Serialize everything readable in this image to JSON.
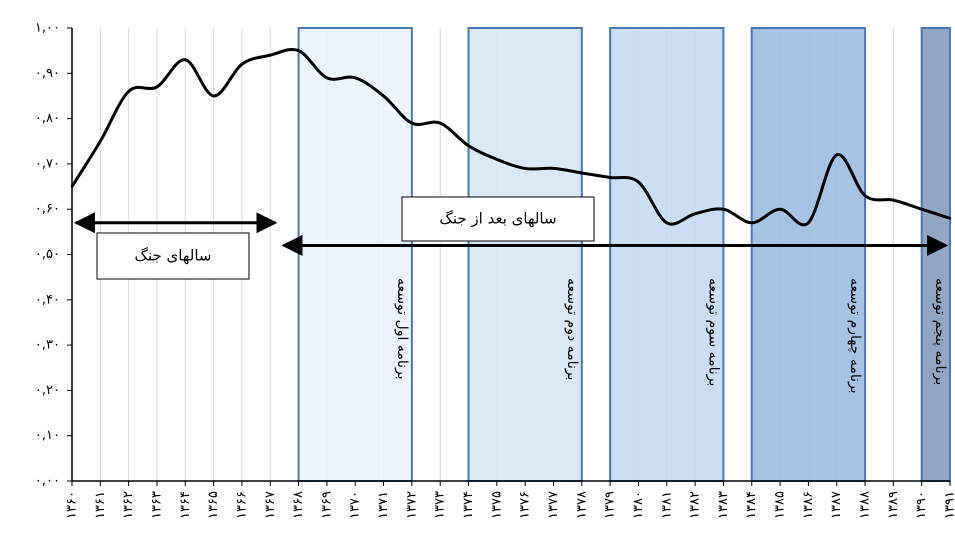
{
  "chart_data": {
    "type": "line",
    "y_ticks": [
      "۰,۰۰",
      "۰,۱۰",
      "۰,۲۰",
      "۰,۳۰",
      "۰,۴۰",
      "۰,۵۰",
      "۰,۶۰",
      "۰,۷۰",
      "۰,۸۰",
      "۰,۹۰",
      "۱,۰۰"
    ],
    "x_ticks": [
      "۱۳۶۰",
      "۱۳۶۱",
      "۱۳۶۲",
      "۱۳۶۳",
      "۱۳۶۴",
      "۱۳۶۵",
      "۱۳۶۶",
      "۱۳۶۷",
      "۱۳۶۸",
      "۱۳۶۹",
      "۱۳۷۰",
      "۱۳۷۱",
      "۱۳۷۲",
      "۱۳۷۳",
      "۱۳۷۴",
      "۱۳۷۵",
      "۱۳۷۶",
      "۱۳۷۷",
      "۱۳۷۸",
      "۱۳۷۹",
      "۱۳۸۰",
      "۱۳۸۱",
      "۱۳۸۲",
      "۱۳۸۳",
      "۱۳۸۴",
      "۱۳۸۵",
      "۱۳۸۶",
      "۱۳۸۷",
      "۱۳۸۸",
      "۱۳۸۹",
      "۱۳۹۰",
      "۱۳۹۱"
    ],
    "ylim": [
      0,
      1
    ],
    "xlim": [
      1360,
      1391
    ],
    "grid": "vertical",
    "series": [
      {
        "x": [
          1360,
          1361,
          1362,
          1363,
          1364,
          1365,
          1366,
          1367,
          1368,
          1369,
          1370,
          1371,
          1372,
          1373,
          1374,
          1375,
          1376,
          1377,
          1378,
          1379,
          1380,
          1381,
          1382,
          1383,
          1384,
          1385,
          1386,
          1387,
          1388,
          1389,
          1390,
          1391
        ],
        "values": [
          0.65,
          0.75,
          0.86,
          0.87,
          0.93,
          0.85,
          0.92,
          0.94,
          0.95,
          0.89,
          0.89,
          0.85,
          0.79,
          0.79,
          0.74,
          0.71,
          0.69,
          0.69,
          0.68,
          0.67,
          0.66,
          0.57,
          0.59,
          0.6,
          0.57,
          0.6,
          0.57,
          0.72,
          0.63,
          0.62,
          0.6,
          0.58
        ]
      }
    ],
    "bands": [
      {
        "x0": 1368,
        "x1": 1372,
        "label": "برنامه اول توسعه",
        "fill": "#e9f1fb"
      },
      {
        "x0": 1374,
        "x1": 1378,
        "label": "برنامه دوم توسعه",
        "fill": "#d5e5f6"
      },
      {
        "x0": 1379,
        "x1": 1383,
        "label": "برنامه سوم توسعه",
        "fill": "#c2d8f1"
      },
      {
        "x0": 1384,
        "x1": 1388,
        "label": "برنامه چهارم توسعه",
        "fill": "#97b8df"
      },
      {
        "x0": 1390,
        "x1": 1391,
        "label": "برنامه پنجم توسعه",
        "fill": "#7d97b9"
      }
    ],
    "annotations": [
      {
        "label": "سالهای جنگ",
        "arrow_from": 1360,
        "arrow_to": 1367
      },
      {
        "label": "سالهای بعد از جنگ",
        "arrow_from": 1368,
        "arrow_to": 1391
      }
    ],
    "colors": {
      "line": "#000000",
      "band_stroke": "#4a78b8",
      "grid": "#d9d9d9"
    }
  }
}
